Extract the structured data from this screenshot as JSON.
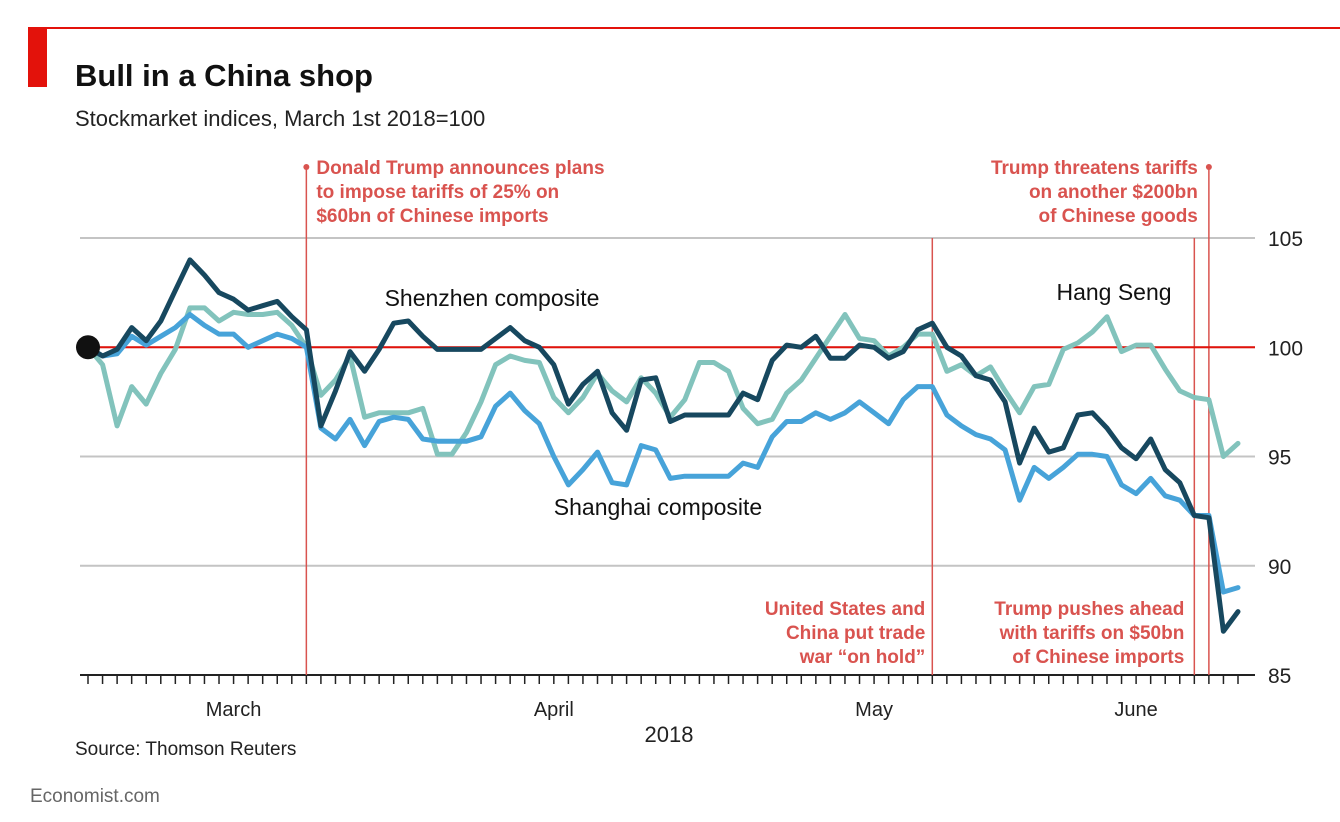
{
  "chart_data": {
    "type": "line",
    "title": "Bull in a China shop",
    "subtitle": "Stockmarket indices, March 1st 2018=100",
    "source": "Source: Thomson Reuters",
    "footer": "Economist.com",
    "xlabel": "2018",
    "categories": [
      null,
      null,
      null,
      null,
      null,
      null,
      null,
      null,
      null,
      null,
      "March",
      null,
      null,
      null,
      null,
      null,
      null,
      null,
      null,
      null,
      null,
      null,
      null,
      null,
      null,
      null,
      null,
      null,
      null,
      null,
      null,
      null,
      "April",
      null,
      null,
      null,
      null,
      null,
      null,
      null,
      null,
      null,
      null,
      null,
      null,
      null,
      null,
      null,
      null,
      null,
      null,
      null,
      null,
      null,
      "May",
      null,
      null,
      null,
      null,
      null,
      null,
      null,
      null,
      null,
      null,
      null,
      null,
      null,
      null,
      null,
      null,
      null,
      "June",
      null,
      null,
      null,
      null,
      null,
      null,
      null
    ],
    "series": [
      {
        "name": "Shenzhen composite",
        "color": "#17485f",
        "values": [
          100,
          99.6,
          99.9,
          100.9,
          100.3,
          101.2,
          102.6,
          104.0,
          103.3,
          102.5,
          102.2,
          101.7,
          101.9,
          102.1,
          101.4,
          100.8,
          96.4,
          98.0,
          99.8,
          98.9,
          99.9,
          101.1,
          101.2,
          100.5,
          99.9,
          99.9,
          99.9,
          99.9,
          100.4,
          100.9,
          100.3,
          100.0,
          99.2,
          97.4,
          98.3,
          98.9,
          97.0,
          96.2,
          98.5,
          98.6,
          96.6,
          96.9,
          96.9,
          96.9,
          96.9,
          97.9,
          97.6,
          99.4,
          100.1,
          100.0,
          100.5,
          99.5,
          99.5,
          100.1,
          100.0,
          99.5,
          99.8,
          100.8,
          101.1,
          100.0,
          99.6,
          98.7,
          98.5,
          97.5,
          94.7,
          96.3,
          95.2,
          95.4,
          96.9,
          97.0,
          96.3,
          95.4,
          94.9,
          95.8,
          94.4,
          93.8,
          92.3,
          92.2,
          87.0,
          87.9
        ]
      },
      {
        "name": "Shanghai composite",
        "color": "#47a3d9",
        "values": [
          100,
          99.6,
          99.7,
          100.5,
          100.1,
          100.5,
          100.9,
          101.5,
          101.0,
          100.6,
          100.6,
          100.0,
          100.3,
          100.6,
          100.4,
          100.0,
          96.3,
          95.8,
          96.7,
          95.5,
          96.6,
          96.8,
          96.7,
          95.8,
          95.7,
          95.7,
          95.7,
          95.9,
          97.3,
          97.9,
          97.1,
          96.5,
          95.0,
          93.7,
          94.4,
          95.2,
          93.8,
          93.7,
          95.5,
          95.3,
          94.0,
          94.1,
          94.1,
          94.1,
          94.1,
          94.7,
          94.5,
          95.9,
          96.6,
          96.6,
          97.0,
          96.7,
          97.0,
          97.5,
          97.0,
          96.5,
          97.6,
          98.2,
          98.2,
          96.9,
          96.4,
          96.0,
          95.8,
          95.3,
          93.0,
          94.5,
          94.0,
          94.5,
          95.1,
          95.1,
          95.0,
          93.7,
          93.3,
          94.0,
          93.2,
          93.0,
          92.3,
          92.3,
          88.8,
          89.0
        ]
      },
      {
        "name": "Hang Seng",
        "color": "#82c3bc",
        "values": [
          100,
          99.2,
          96.4,
          98.2,
          97.4,
          98.8,
          99.9,
          101.8,
          101.8,
          101.2,
          101.6,
          101.5,
          101.5,
          101.6,
          101.0,
          100.0,
          97.8,
          98.5,
          99.6,
          96.8,
          97.0,
          97.0,
          97.0,
          97.2,
          95.1,
          95.1,
          96.1,
          97.5,
          99.2,
          99.6,
          99.4,
          99.3,
          97.7,
          97.0,
          97.7,
          98.8,
          98.0,
          97.5,
          98.6,
          97.9,
          96.8,
          97.6,
          99.3,
          99.3,
          98.9,
          97.2,
          96.5,
          96.7,
          97.9,
          98.5,
          99.5,
          100.5,
          101.5,
          100.4,
          100.3,
          99.6,
          100.0,
          100.6,
          100.6,
          98.9,
          99.2,
          98.7,
          99.1,
          98.0,
          97.0,
          98.2,
          98.3,
          99.9,
          100.2,
          100.7,
          101.4,
          99.8,
          100.1,
          100.1,
          99.0,
          98.0,
          97.7,
          97.6,
          95.0,
          95.6
        ]
      }
    ],
    "ylim": [
      85,
      105
    ],
    "yticks": [
      85,
      90,
      95,
      100,
      105
    ],
    "grid": true,
    "annotations": [
      {
        "index": 15,
        "lines": [
          "Donald Trump announces plans",
          "to impose tariffs of 25% on",
          "$60bn of Chinese imports"
        ]
      },
      {
        "index": 77,
        "lines": [
          "Trump threatens tariffs",
          "on another $200bn",
          "of Chinese goods"
        ]
      },
      {
        "index": 58,
        "lines": [
          "United States and",
          "China put trade",
          "war “on hold”"
        ]
      },
      {
        "index": 76,
        "lines": [
          "Trump pushes ahead",
          "with tariffs on $50bn",
          "of Chinese imports"
        ]
      }
    ]
  }
}
